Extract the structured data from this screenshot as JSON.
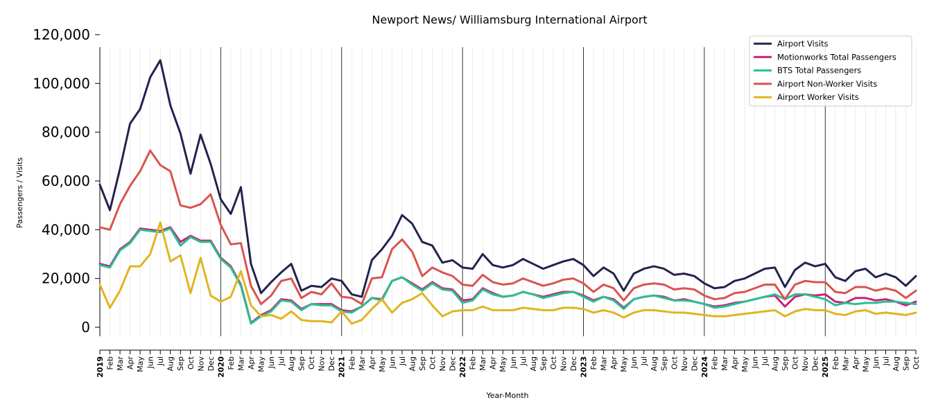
{
  "chart_data": {
    "type": "line",
    "title": "Newport News/ Williamsburg International Airport",
    "xlabel": "Year-Month",
    "ylabel": "Passengers / Visits",
    "ylim": [
      0,
      120000
    ],
    "yticks": [
      "0",
      "20,000",
      "40,000",
      "60,000",
      "80,000",
      "100,000",
      "120,000"
    ],
    "yticks_values": [
      0,
      20000,
      40000,
      60000,
      80000,
      100000,
      120000
    ],
    "legend_position": "top-right",
    "grid": "vertical",
    "x_labels": [
      "2019",
      "Feb",
      "Mar",
      "Apr",
      "May",
      "Jun",
      "Jul",
      "Aug",
      "Sep",
      "Oct",
      "Nov",
      "Dec",
      "2020",
      "Feb",
      "Mar",
      "Apr",
      "May",
      "Jun",
      "Jul",
      "Aug",
      "Sep",
      "Oct",
      "Nov",
      "Dec",
      "2021",
      "Feb",
      "Mar",
      "Apr",
      "May",
      "Jun",
      "Jul",
      "Aug",
      "Sep",
      "Oct",
      "Nov",
      "Dec",
      "2022",
      "Feb",
      "Mar",
      "Apr",
      "May",
      "Jun",
      "Jul",
      "Aug",
      "Sep",
      "Oct",
      "Nov",
      "Dec",
      "2023",
      "Feb",
      "Mar",
      "Apr",
      "May",
      "Jun",
      "Jul",
      "Aug",
      "Sep",
      "Oct",
      "Nov",
      "Dec",
      "2024",
      "Feb",
      "Mar",
      "Apr",
      "May",
      "Jun",
      "Jul",
      "Aug",
      "Sep",
      "Oct",
      "Nov",
      "Dec",
      "2025",
      "Feb",
      "Mar",
      "Apr",
      "May",
      "Jun",
      "Jul",
      "Aug",
      "Sep",
      "Oct"
    ],
    "series": [
      {
        "name": "Airport Visits",
        "color": "#22224e",
        "values": [
          58500,
          48000,
          65000,
          83500,
          89500,
          102500,
          109500,
          91000,
          79500,
          63000,
          79000,
          67000,
          52500,
          46500,
          57500,
          26000,
          14000,
          18500,
          22500,
          26000,
          15000,
          17000,
          16500,
          20000,
          19000,
          13500,
          12500,
          27500,
          32000,
          37500,
          46000,
          42500,
          35000,
          33500,
          26500,
          27500,
          24500,
          24000,
          30000,
          25500,
          24500,
          25500,
          28000,
          26000,
          24000,
          25500,
          27000,
          28000,
          25500,
          21000,
          24500,
          22000,
          15000,
          22000,
          24000,
          25000,
          24000,
          21500,
          22000,
          21000,
          18000,
          16000,
          16500,
          19000,
          20000,
          22000,
          24000,
          24500,
          16500,
          23500,
          26500,
          25000,
          26000,
          20500,
          19000,
          23000,
          24000,
          20500,
          22000,
          20500,
          17000,
          21000
        ]
      },
      {
        "name": "Motionworks Total Passengers",
        "color": "#cc1f7a",
        "values": [
          26000,
          25000,
          32000,
          35000,
          40500,
          40000,
          39500,
          41000,
          35000,
          37500,
          35500,
          35500,
          28500,
          25000,
          17500,
          1800,
          5000,
          7000,
          11500,
          11000,
          7500,
          9500,
          9500,
          9500,
          7000,
          6500,
          8500,
          12000,
          11500,
          19000,
          20500,
          18000,
          15500,
          18500,
          16000,
          15500,
          11000,
          11500,
          16000,
          14000,
          12500,
          13000,
          14500,
          13500,
          12500,
          13500,
          14500,
          14500,
          13000,
          11000,
          12500,
          11500,
          8000,
          11500,
          12500,
          13000,
          12500,
          11000,
          11500,
          10500,
          9500,
          8500,
          9000,
          10000,
          10500,
          11500,
          12500,
          13000,
          8500,
          12500,
          13500,
          13000,
          13500,
          10500,
          10000,
          12000,
          12000,
          11000,
          11500,
          10500,
          9000,
          10500
        ]
      },
      {
        "name": "BTS Total Passengers",
        "color": "#27c18f",
        "values": [
          25500,
          24500,
          31500,
          34500,
          40000,
          39500,
          39000,
          40500,
          33500,
          37000,
          35000,
          35000,
          28000,
          24500,
          17000,
          1500,
          4500,
          6500,
          11000,
          10500,
          7000,
          9500,
          9000,
          9000,
          6500,
          6000,
          8500,
          12000,
          11000,
          19000,
          20500,
          17500,
          15000,
          18000,
          15500,
          15000,
          10000,
          11000,
          15500,
          13500,
          12500,
          13000,
          14500,
          13500,
          12000,
          13000,
          14000,
          14500,
          12500,
          10500,
          12500,
          11000,
          7500,
          11500,
          12500,
          13000,
          12000,
          11000,
          11000,
          10500,
          9500,
          8000,
          8500,
          9500,
          10500,
          11500,
          12500,
          13500,
          11500,
          13500,
          13500,
          12500,
          11500,
          9000,
          10000,
          9500,
          10000,
          10000,
          10500,
          10500,
          10000,
          9500
        ]
      },
      {
        "name": "Airport Non-Worker Visits",
        "color": "#d9534f",
        "values": [
          41000,
          40000,
          50500,
          58000,
          64000,
          72500,
          66500,
          64000,
          50000,
          49000,
          50500,
          54500,
          42000,
          34000,
          34500,
          17000,
          9500,
          13000,
          19000,
          20000,
          12000,
          14500,
          13500,
          18000,
          12500,
          12000,
          9500,
          20000,
          20500,
          32000,
          36000,
          31000,
          21000,
          24500,
          22500,
          21000,
          17500,
          17000,
          21500,
          18500,
          17500,
          18000,
          20000,
          18500,
          17000,
          18000,
          19500,
          20000,
          18000,
          14500,
          17500,
          16000,
          11000,
          16000,
          17500,
          18000,
          17500,
          15500,
          16000,
          15500,
          13000,
          11500,
          12000,
          14000,
          14500,
          16000,
          17500,
          17500,
          11500,
          17500,
          19000,
          18500,
          18500,
          14500,
          14000,
          16500,
          16500,
          15000,
          16000,
          15000,
          12000,
          15000
        ]
      },
      {
        "name": "Airport Worker Visits",
        "color": "#e0b51e",
        "values": [
          17500,
          8000,
          15000,
          25000,
          25000,
          30000,
          43000,
          27000,
          29500,
          14000,
          28500,
          13000,
          10500,
          12500,
          23000,
          9000,
          4500,
          5000,
          3500,
          6500,
          3000,
          2500,
          2500,
          2000,
          6500,
          1500,
          3000,
          7500,
          11500,
          6000,
          10000,
          11500,
          14000,
          9000,
          4500,
          6500,
          7000,
          7000,
          8500,
          7000,
          7000,
          7000,
          8000,
          7500,
          7000,
          7000,
          8000,
          8000,
          7500,
          6000,
          7000,
          6000,
          4000,
          6000,
          7000,
          7000,
          6500,
          6000,
          6000,
          5500,
          5000,
          4500,
          4500,
          5000,
          5500,
          6000,
          6500,
          7000,
          4500,
          6500,
          7500,
          7000,
          7000,
          5500,
          5000,
          6500,
          7000,
          5500,
          6000,
          5500,
          5000,
          6000
        ]
      }
    ]
  }
}
